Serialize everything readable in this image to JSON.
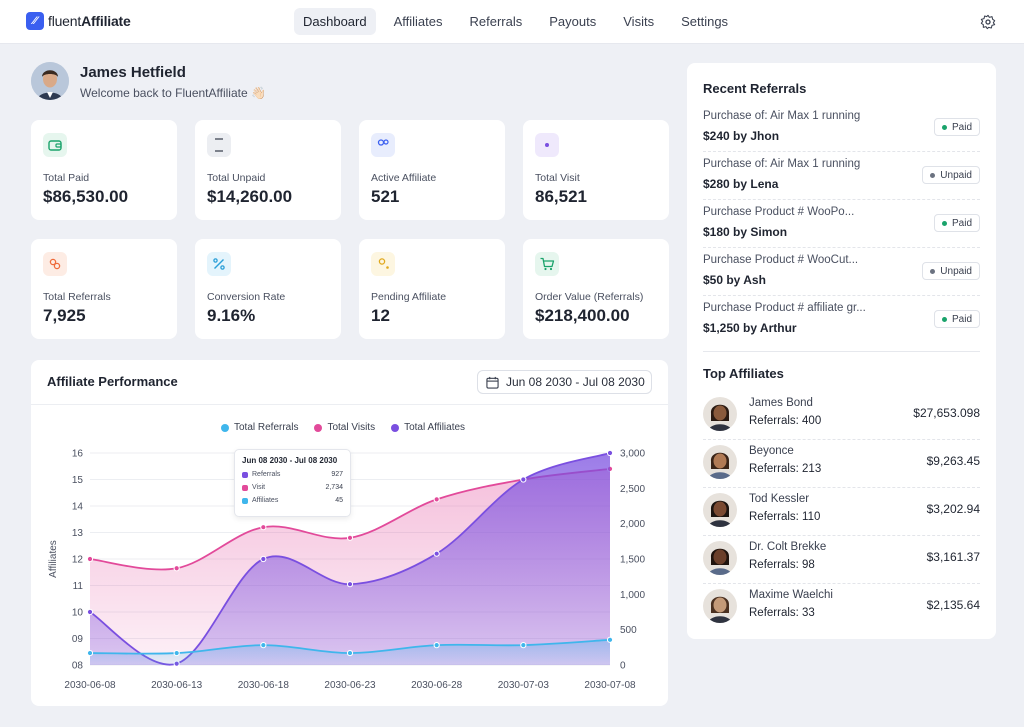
{
  "app": {
    "logo_text_light": "fluent",
    "logo_text_bold": "Affiliate"
  },
  "nav": [
    "Dashboard",
    "Affiliates",
    "Referrals",
    "Payouts",
    "Visits",
    "Settings"
  ],
  "nav_active": "Dashboard",
  "profile": {
    "name": "James Hetfield",
    "welcome": "Welcome back to FluentAffiliate 👋🏻"
  },
  "stats": [
    {
      "label": "Total Paid",
      "value": "$86,530.00",
      "icon": "wallet-icon",
      "color": "#1aa36b",
      "bg": "#e6f6ee"
    },
    {
      "label": "Total Unpaid",
      "value": "$14,260.00",
      "icon": "hourglass-icon",
      "color": "#3b4150",
      "bg": "#eceef2"
    },
    {
      "label": "Active Affiliate",
      "value": "521",
      "icon": "users-icon",
      "color": "#3a5ff0",
      "bg": "#e8edfd"
    },
    {
      "label": "Total Visit",
      "value": "86,521",
      "icon": "eye-icon",
      "color": "#7a4fe0",
      "bg": "#efe9fc"
    },
    {
      "label": "Total Referrals",
      "value": "7,925",
      "icon": "coins-icon",
      "color": "#ee6a3a",
      "bg": "#fdece4"
    },
    {
      "label": "Conversion Rate",
      "value": "9.16%",
      "icon": "percent-icon",
      "color": "#2b9fd8",
      "bg": "#e4f4fc"
    },
    {
      "label": "Pending Affiliate",
      "value": "12",
      "icon": "user-pending-icon",
      "color": "#e0a81c",
      "bg": "#fdf6e1"
    },
    {
      "label": "Order Value (Referrals)",
      "value": "$218,400.00",
      "icon": "cart-icon",
      "color": "#1aa36b",
      "bg": "#e6f6ee"
    }
  ],
  "performance": {
    "title": "Affiliate Performance",
    "date_range": "Jun 08 2030 - Jul 08 2030",
    "tooltip": {
      "title": "Jun 08 2030 - Jul 08 2030",
      "rows": [
        {
          "label": "Referrals",
          "value": "927",
          "color": "#7a4fe0"
        },
        {
          "label": "Visit",
          "value": "2,734",
          "color": "#e24a9a"
        },
        {
          "label": "Affiliates",
          "value": "45",
          "color": "#3fb6ec"
        }
      ]
    }
  },
  "chart_data": {
    "type": "area",
    "x": [
      "2030-06-08",
      "2030-06-13",
      "2030-06-18",
      "2030-06-23",
      "2030-06-28",
      "2030-07-03",
      "2030-07-08"
    ],
    "ylabel": "Affiliates",
    "y_left_ticks": [
      "08",
      "09",
      "10",
      "11",
      "12",
      "13",
      "14",
      "15",
      "16"
    ],
    "y_left_lim": [
      8,
      16
    ],
    "y_right_ticks": [
      "0",
      "500",
      "1,000",
      "1,500",
      "2,000",
      "2,500",
      "3,000"
    ],
    "y_right_lim": [
      0,
      3000
    ],
    "legend_position": "top-center",
    "series": [
      {
        "name": "Total Referrals",
        "color": "#3fb6ec",
        "axis": "left",
        "points": [
          [
            0,
            8.45
          ],
          [
            1,
            8.45
          ],
          [
            2,
            8.75
          ],
          [
            3,
            8.45
          ],
          [
            4,
            8.75
          ],
          [
            5,
            8.75
          ],
          [
            6,
            8.95
          ]
        ]
      },
      {
        "name": "Total Visits",
        "color": "#e24a9a",
        "axis": "left",
        "points": [
          [
            0,
            12.0
          ],
          [
            1,
            11.65
          ],
          [
            2,
            13.2
          ],
          [
            3,
            12.8
          ],
          [
            4,
            14.25
          ],
          [
            5,
            15.0
          ],
          [
            6,
            15.4
          ]
        ]
      },
      {
        "name": "Total Affiliates",
        "color": "#7a4fe0",
        "axis": "left",
        "points": [
          [
            0,
            10.0
          ],
          [
            1,
            8.05
          ],
          [
            2,
            12.0
          ],
          [
            3,
            11.05
          ],
          [
            4,
            12.2
          ],
          [
            5,
            15.0
          ],
          [
            6,
            16.0
          ]
        ]
      }
    ]
  },
  "recent_referrals": {
    "title": "Recent Referrals",
    "items": [
      {
        "title": "Purchase of: Air Max 1 running",
        "amount": "$240 by Jhon",
        "status": "Paid"
      },
      {
        "title": "Purchase of: Air Max 1 running",
        "amount": "$280 by Lena",
        "status": "Unpaid"
      },
      {
        "title": "Purchase Product # WooPo...",
        "amount": "$180 by Simon",
        "status": "Paid"
      },
      {
        "title": "Purchase Product # WooCut...",
        "amount": "$50 by Ash",
        "status": "Unpaid"
      },
      {
        "title": "Purchase Product # affiliate gr...",
        "amount": "$1,250 by Arthur",
        "status": "Paid"
      }
    ],
    "status_colors": {
      "Paid": "#1aa36b",
      "Unpaid": "#6b7280"
    }
  },
  "top_affiliates": {
    "title": "Top Affiliates",
    "items": [
      {
        "name": "James Bond",
        "referrals": "Referrals: 400",
        "amount": "$27,653.098",
        "skin": "#8a5a3c"
      },
      {
        "name": "Beyonce",
        "referrals": "Referrals: 213",
        "amount": "$9,263.45",
        "skin": "#b07a55"
      },
      {
        "name": "Tod Kessler",
        "referrals": "Referrals: 110",
        "amount": "$3,202.94",
        "skin": "#7a4a32"
      },
      {
        "name": "Dr. Colt Brekke",
        "referrals": "Referrals: 98",
        "amount": "$3,161.37",
        "skin": "#6b3f2a"
      },
      {
        "name": "Maxime Waelchi",
        "referrals": "Referrals: 33",
        "amount": "$2,135.64",
        "skin": "#c49a78"
      }
    ]
  }
}
